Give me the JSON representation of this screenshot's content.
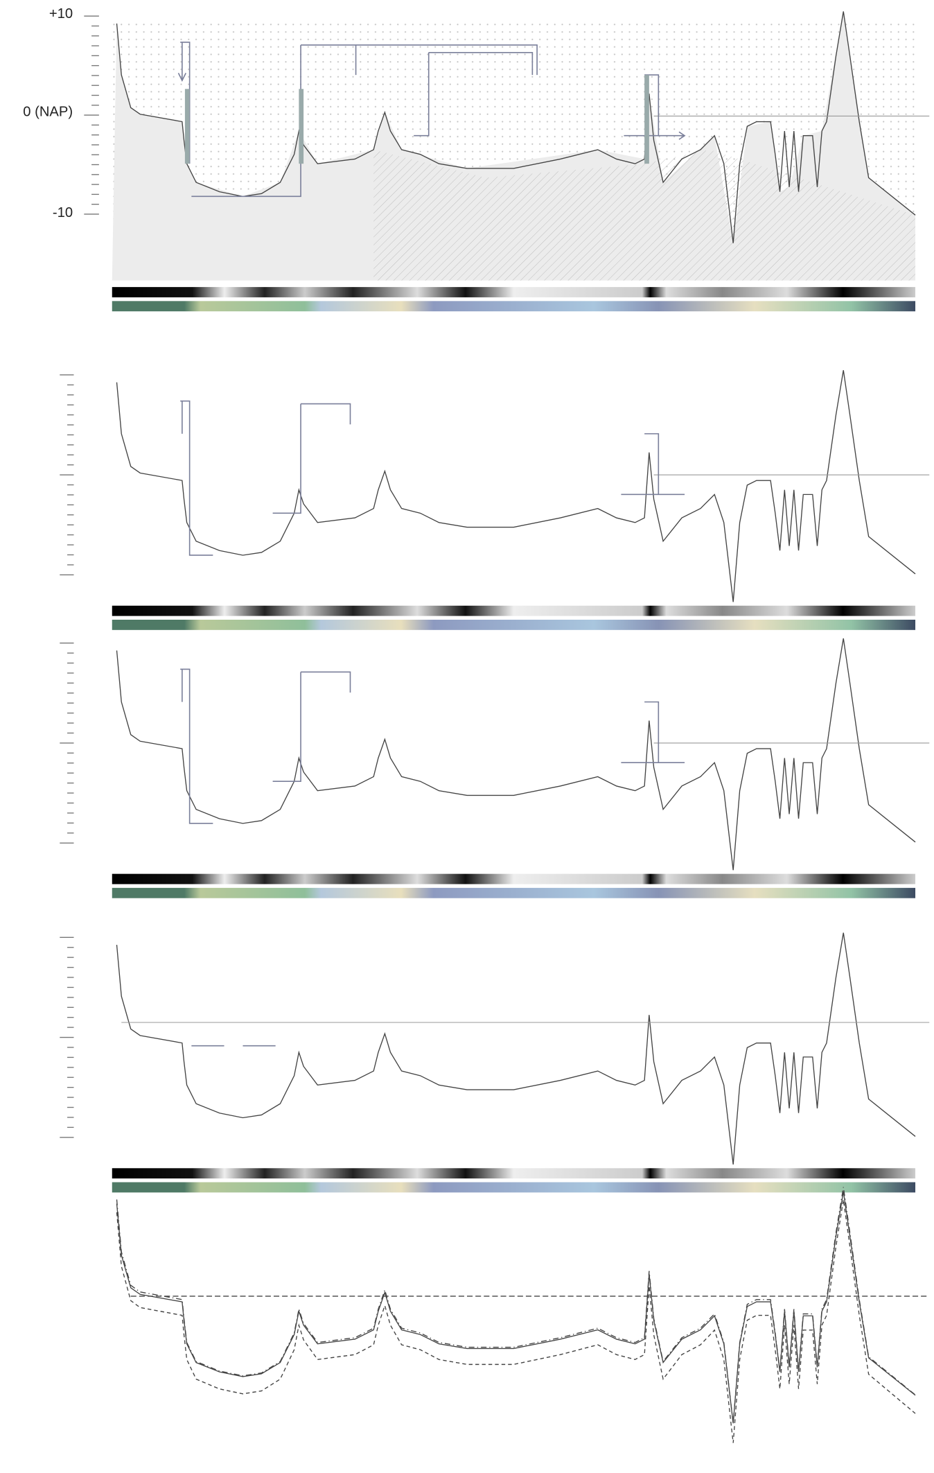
{
  "axis": {
    "labels": [
      "+10",
      "0 (NAP)",
      "-10"
    ]
  }
}
